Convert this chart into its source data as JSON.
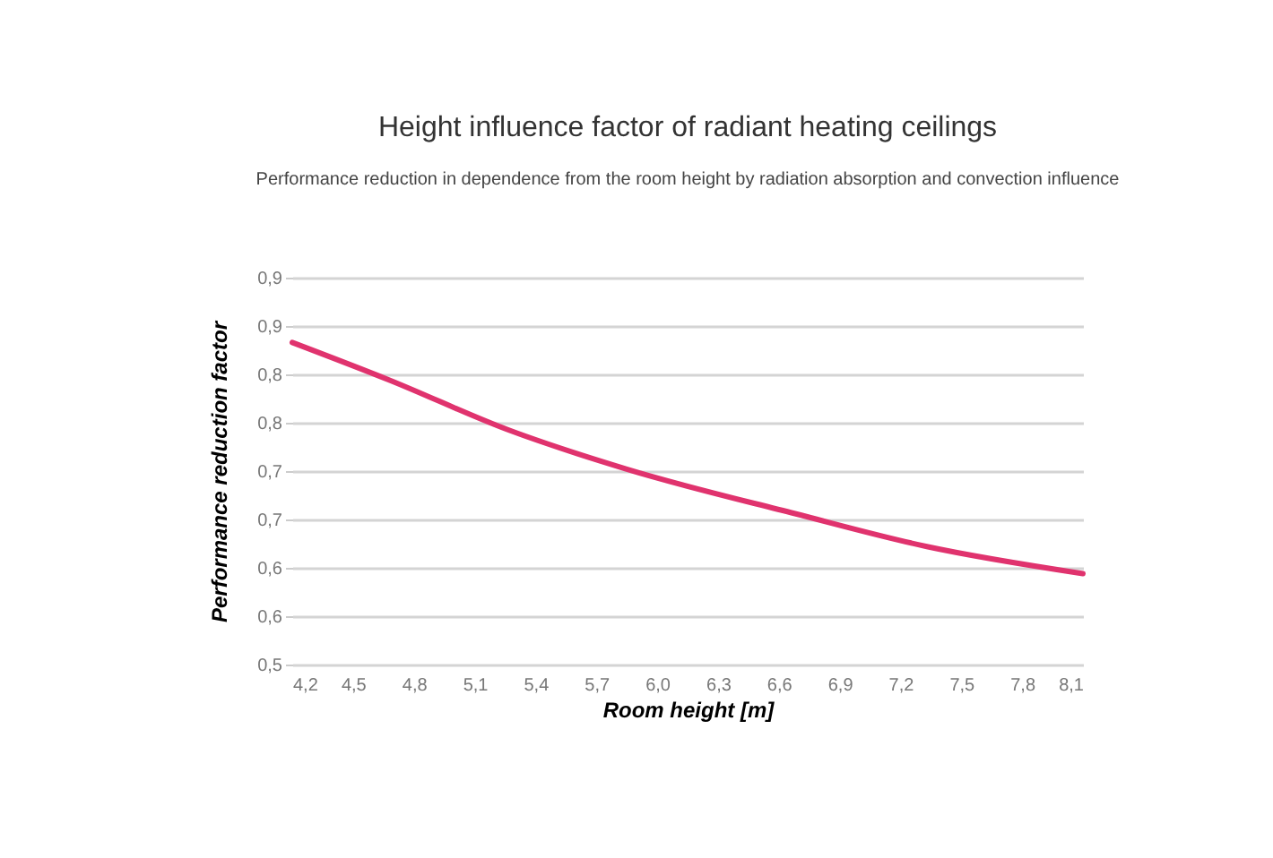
{
  "chart_data": {
    "type": "line",
    "title": "Height influence factor of radiant heating ceilings",
    "subtitle": "Performance reduction in dependence from the room height by radiation absorption and convection influence",
    "xlabel": "Room height [m]",
    "ylabel": "Performance reduction factor",
    "x": [
      4.2,
      4.68,
      5.26,
      5.85,
      6.68,
      7.33,
      8.1
    ],
    "series": [
      {
        "color": "#e0336e",
        "values": [
          0.833,
          0.794,
          0.743,
          0.702,
          0.656,
          0.622,
          0.594
        ]
      }
    ],
    "xlim": [
      4.2,
      8.1
    ],
    "xticks": [
      {
        "value": 4.2,
        "label": "4,2"
      },
      {
        "value": 4.5,
        "label": "4,5"
      },
      {
        "value": 4.8,
        "label": "4,8"
      },
      {
        "value": 5.1,
        "label": "5,1"
      },
      {
        "value": 5.4,
        "label": "5,4"
      },
      {
        "value": 5.7,
        "label": "5,7"
      },
      {
        "value": 6.0,
        "label": "6,0"
      },
      {
        "value": 6.3,
        "label": "6,3"
      },
      {
        "value": 6.6,
        "label": "6,6"
      },
      {
        "value": 6.9,
        "label": "6,9"
      },
      {
        "value": 7.2,
        "label": "7,2"
      },
      {
        "value": 7.5,
        "label": "7,5"
      },
      {
        "value": 7.8,
        "label": "7,8"
      },
      {
        "value": 8.1,
        "label": "8,1"
      }
    ],
    "ylim": [
      0.5,
      0.9
    ],
    "yticks": [
      {
        "value": 0.5,
        "label": "0,5"
      },
      {
        "value": 0.55,
        "label": "0,6"
      },
      {
        "value": 0.6,
        "label": "0,6"
      },
      {
        "value": 0.65,
        "label": "0,7"
      },
      {
        "value": 0.7,
        "label": "0,7"
      },
      {
        "value": 0.75,
        "label": "0,8"
      },
      {
        "value": 0.8,
        "label": "0,8"
      },
      {
        "value": 0.85,
        "label": "0,9"
      },
      {
        "value": 0.9,
        "label": "0,9"
      }
    ],
    "grid": "y",
    "marker": "none",
    "line_style": "solid"
  }
}
